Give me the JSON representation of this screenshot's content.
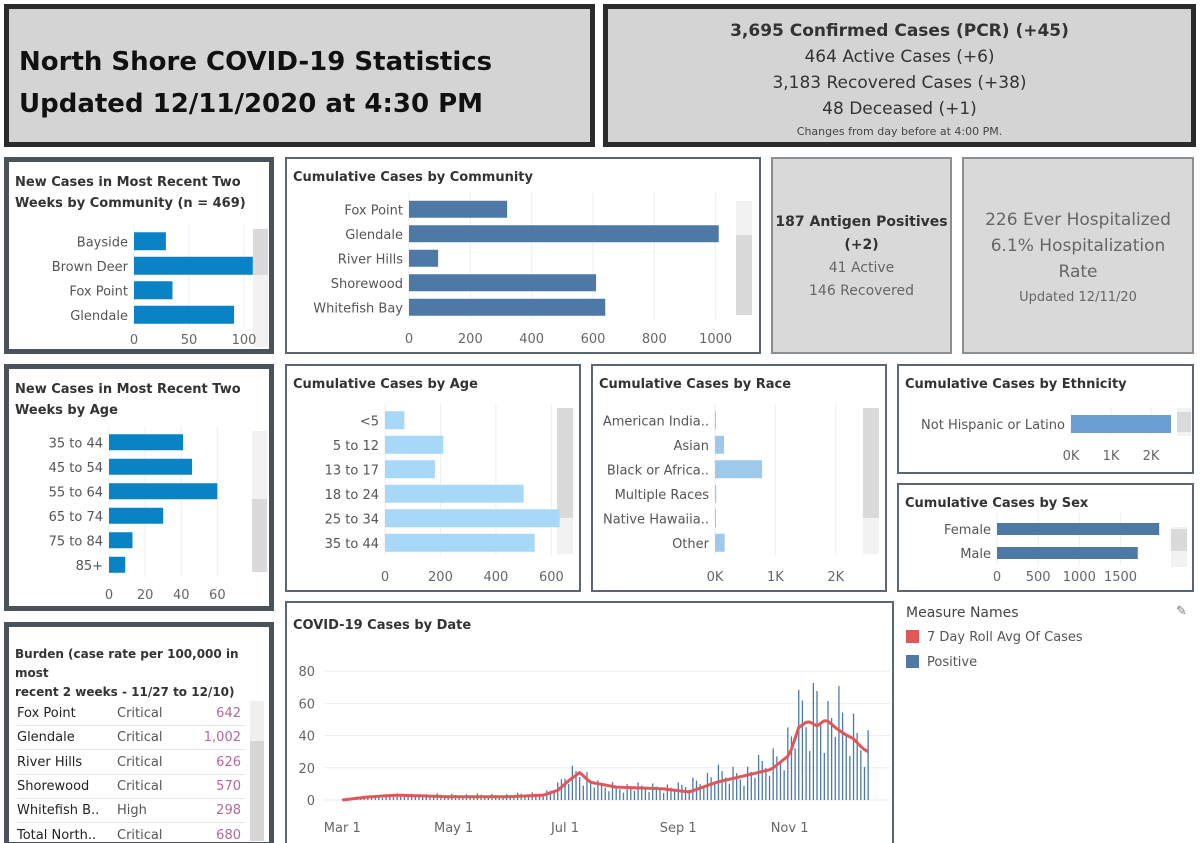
{
  "header": {
    "title_line1": "North Shore COVID-19 Statistics",
    "title_line2": "Updated 12/11/2020 at 4:30 PM"
  },
  "summary": {
    "confirmed": "3,695  Confirmed Cases (PCR) (+45)",
    "active": "464  Active Cases (+6)",
    "recovered": "3,183  Recovered Cases (+38)",
    "deceased": "48  Deceased (+1)",
    "note": "Changes from day before  at 4:00 PM."
  },
  "antigen": {
    "line1": "187 Antigen Positives",
    "line2": "(+2)",
    "active": "41 Active",
    "recovered": "146 Recovered"
  },
  "hospital": {
    "line1": "226 Ever Hospitalized",
    "line2": "6.1%  Hospitalization",
    "line3": "Rate",
    "updated": "Updated 12/11/20"
  },
  "colors": {
    "bright_blue": "#0a83c6",
    "steel_blue": "#4e79a7",
    "light_blue": "#a8d8f8",
    "race_blue": "#9ec9ea",
    "eth_blue": "#6b9fd1",
    "red": "#e15759"
  },
  "chart_data": [
    {
      "id": "new_community",
      "type": "bar",
      "title": "New Cases in Most Recent Two Weeks by Community (n = 469)",
      "title_line1": "New Cases in Most Recent Two",
      "title_line2": "Weeks by Community (n = 469)",
      "categories": [
        "Bayside",
        "Brown Deer",
        "Fox Point",
        "Glendale"
      ],
      "values": [
        29,
        108,
        35,
        91
      ],
      "xlim": [
        0,
        120
      ],
      "ticks": [
        "0",
        "50",
        "100"
      ],
      "tick_values": [
        0,
        50,
        100
      ]
    },
    {
      "id": "cum_community",
      "type": "bar",
      "title": "Cumulative Cases by Community",
      "categories": [
        "Fox Point",
        "Glendale",
        "River Hills",
        "Shorewood",
        "Whitefish Bay"
      ],
      "values": [
        320,
        1010,
        95,
        610,
        640
      ],
      "xlim": [
        0,
        1050
      ],
      "ticks": [
        "0",
        "200",
        "400",
        "600",
        "800",
        "1000"
      ],
      "tick_values": [
        0,
        200,
        400,
        600,
        800,
        1000
      ]
    },
    {
      "id": "new_age",
      "type": "bar",
      "title": "New Cases in Most Recent Two Weeks by Age",
      "title_line1": "New Cases in Most Recent Two",
      "title_line2": "Weeks by Age",
      "categories": [
        "35 to 44",
        "45 to 54",
        "55 to 64",
        "65 to 74",
        "75 to 84",
        "85+"
      ],
      "values": [
        41,
        46,
        60,
        30,
        13,
        9
      ],
      "xlim": [
        0,
        72
      ],
      "ticks": [
        "0",
        "20",
        "40",
        "60"
      ],
      "tick_values": [
        0,
        20,
        40,
        60
      ]
    },
    {
      "id": "cum_age",
      "type": "bar",
      "title": "Cumulative Cases by Age",
      "categories": [
        "<5",
        "5 to 12",
        "13 to 17",
        "18 to 24",
        "25 to 34",
        "35 to 44"
      ],
      "values": [
        70,
        210,
        180,
        500,
        630,
        540
      ],
      "xlim": [
        0,
        660
      ],
      "ticks": [
        "0",
        "200",
        "400",
        "600"
      ],
      "tick_values": [
        0,
        200,
        400,
        600
      ]
    },
    {
      "id": "cum_race",
      "type": "bar",
      "title": "Cumulative Cases by Race",
      "categories": [
        "American India..",
        "Asian",
        "Black or Africa..",
        "Multiple Races",
        "Native Hawaiia..",
        "Other"
      ],
      "values": [
        15,
        150,
        780,
        20,
        10,
        160
      ],
      "xlim": [
        0,
        2700
      ],
      "ticks": [
        "0K",
        "1K",
        "2K"
      ],
      "tick_values": [
        0,
        1000,
        2000
      ]
    },
    {
      "id": "cum_ethnicity",
      "type": "bar",
      "title": "Cumulative Cases by Ethnicity",
      "categories": [
        "Not Hispanic or Latino"
      ],
      "values": [
        2500
      ],
      "xlim": [
        0,
        2650
      ],
      "ticks": [
        "0K",
        "1K",
        "2K"
      ],
      "tick_values": [
        0,
        1000,
        2000
      ]
    },
    {
      "id": "cum_sex",
      "type": "bar",
      "title": "Cumulative Cases by Sex",
      "categories": [
        "Female",
        "Male"
      ],
      "values": [
        1970,
        1710
      ],
      "xlim": [
        0,
        2150
      ],
      "ticks": [
        "0",
        "500",
        "1000",
        "1500"
      ],
      "tick_values": [
        0,
        500,
        1000,
        1500
      ]
    },
    {
      "id": "by_date",
      "type": "bar",
      "title": "COVID-19 Cases by Date",
      "ylim": [
        0,
        90
      ],
      "yticks": [
        "0",
        "20",
        "40",
        "60",
        "80"
      ],
      "ytick_values": [
        0,
        20,
        40,
        60,
        80
      ],
      "xticks": [
        "Mar 1",
        "May 1",
        "Jul 1",
        "Sep 1",
        "Nov 1"
      ],
      "xtick_days": [
        0,
        61,
        122,
        184,
        245
      ],
      "day_range": [
        -10,
        300
      ],
      "series": [
        {
          "name": "Positive",
          "color": "#4e79a7",
          "anchors": [
            [
              0,
              1
            ],
            [
              30,
              3
            ],
            [
              60,
              3
            ],
            [
              90,
              3
            ],
            [
              110,
              4
            ],
            [
              118,
              8
            ],
            [
              122,
              15
            ],
            [
              130,
              18
            ],
            [
              140,
              9
            ],
            [
              160,
              8
            ],
            [
              185,
              8
            ],
            [
              205,
              16
            ],
            [
              220,
              16
            ],
            [
              238,
              26
            ],
            [
              248,
              45
            ],
            [
              252,
              55
            ],
            [
              256,
              48
            ],
            [
              260,
              65
            ],
            [
              265,
              50
            ],
            [
              270,
              55
            ],
            [
              276,
              45
            ],
            [
              282,
              40
            ],
            [
              288,
              36
            ]
          ]
        },
        {
          "name": "7 Day Roll Avg Of Cases",
          "color": "#e15759",
          "anchors": [
            [
              0,
              0
            ],
            [
              15,
              2
            ],
            [
              30,
              3
            ],
            [
              60,
              2
            ],
            [
              90,
              2
            ],
            [
              110,
              3
            ],
            [
              118,
              6
            ],
            [
              124,
              12
            ],
            [
              130,
              17
            ],
            [
              136,
              11
            ],
            [
              150,
              8
            ],
            [
              175,
              7
            ],
            [
              190,
              5
            ],
            [
              205,
              11
            ],
            [
              220,
              15
            ],
            [
              235,
              19
            ],
            [
              245,
              28
            ],
            [
              250,
              45
            ],
            [
              255,
              49
            ],
            [
              260,
              46
            ],
            [
              265,
              50
            ],
            [
              270,
              45
            ],
            [
              275,
              41
            ],
            [
              280,
              38
            ],
            [
              285,
              32
            ],
            [
              288,
              30
            ]
          ]
        }
      ]
    }
  ],
  "burden": {
    "title_line1": "Burden (case rate per 100,000 in most",
    "title_line2": "recent 2 weeks - 11/27 to 12/10)",
    "rows": [
      {
        "name": "Fox Point",
        "level": "Critical",
        "rate": "642"
      },
      {
        "name": "Glendale",
        "level": "Critical",
        "rate": "1,002"
      },
      {
        "name": "River Hills",
        "level": "Critical",
        "rate": "626"
      },
      {
        "name": "Shorewood",
        "level": "Critical",
        "rate": "570"
      },
      {
        "name": "Whitefish B..",
        "level": "High",
        "rate": "298"
      },
      {
        "name": "Total North..",
        "level": "Critical",
        "rate": "680"
      }
    ]
  },
  "legend": {
    "title": "Measure Names",
    "items": [
      {
        "label": "7 Day Roll Avg Of Cases",
        "color": "#e15759"
      },
      {
        "label": "Positive",
        "color": "#4e79a7"
      }
    ]
  }
}
